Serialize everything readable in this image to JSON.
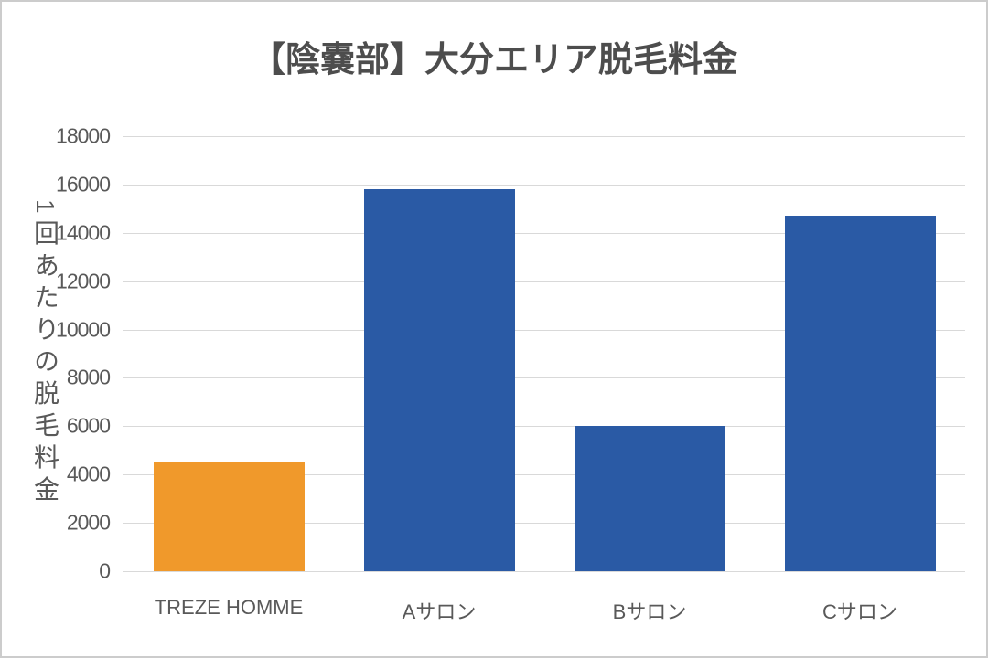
{
  "chart_data": {
    "type": "bar",
    "title": "【陰嚢部】大分エリア脱毛料金",
    "xlabel": "",
    "ylabel": "1回あたりの脱毛料金",
    "categories": [
      "TREZE HOMME",
      "Aサロン",
      "Bサロン",
      "Cサロン"
    ],
    "category_slugs": [
      "treze-homme",
      "a-salon",
      "b-salon",
      "c-salon"
    ],
    "values": [
      4500,
      15800,
      6000,
      14700
    ],
    "bar_colors": [
      "#F0992B",
      "#2A5AA5",
      "#2A5AA5",
      "#2A5AA5"
    ],
    "ylim": [
      0,
      18000
    ],
    "ytick_step": 2000,
    "yticks": [
      0,
      2000,
      4000,
      6000,
      8000,
      10000,
      12000,
      14000,
      16000,
      18000
    ],
    "grid": true,
    "legend": "none",
    "colors": {
      "highlight_bar": "#F0992B",
      "default_bar": "#2A5AA5",
      "gridline": "#D9D9D9",
      "text": "#595959",
      "title_text": "#4D4D4D",
      "background": "#FFFFFF",
      "frame_border": "#CCCCCC"
    }
  }
}
